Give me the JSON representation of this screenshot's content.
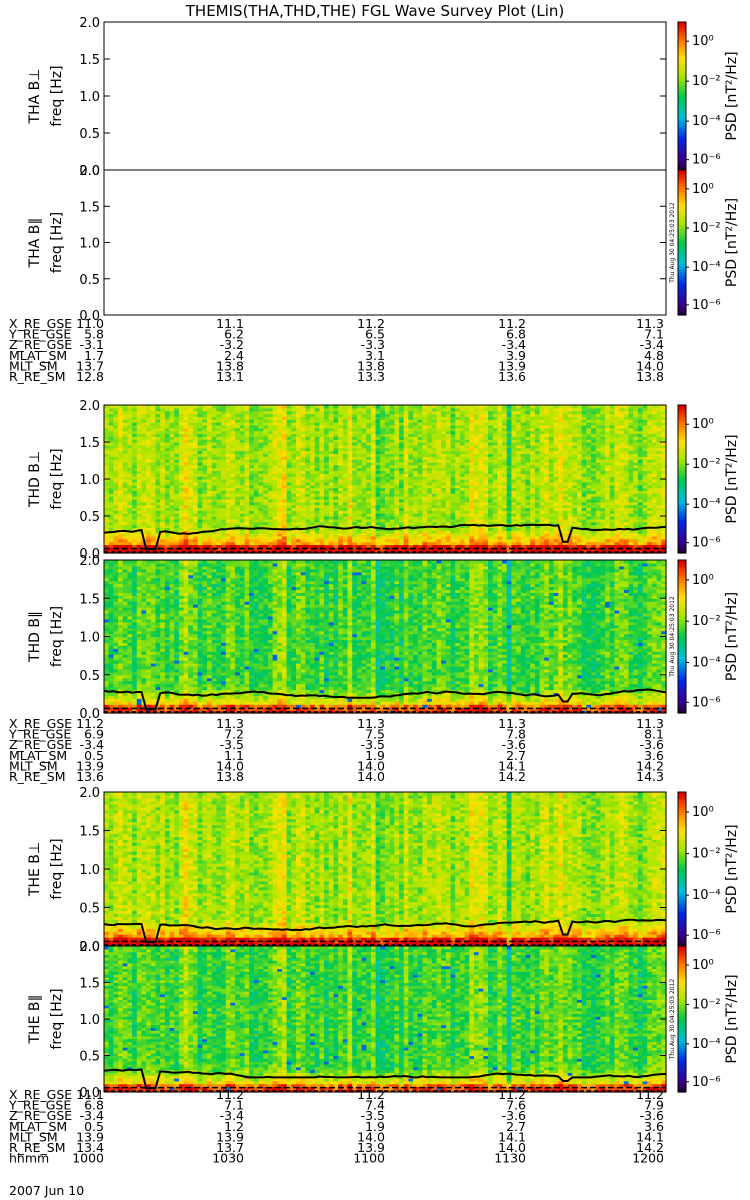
{
  "title": "THEMIS(THA,THD,THE) FGL Wave Survey Plot (Lin)",
  "colorbar": {
    "label": "PSD [nT²/Hz]",
    "tick_exponents": [
      0,
      -2,
      -4,
      -6
    ],
    "tick_labels": [
      "10⁰",
      "10⁻²",
      "10⁻⁴",
      "10⁻⁶"
    ]
  },
  "timestamp": "Thu Aug 30 04:25:03 2012",
  "date_label": "2007 Jun 10",
  "chart_data": [
    {
      "type": "heatmap",
      "probe": "tha",
      "panels": [
        {
          "label": "THA B⊥",
          "ylabel": "freq [Hz]",
          "ylim": [
            0,
            2.0
          ],
          "yticks": [
            "0.0",
            "0.5",
            "1.0",
            "1.5",
            "2.0"
          ],
          "has_data": false
        },
        {
          "label": "THA B∥",
          "ylabel": "freq [Hz]",
          "ylim": [
            0,
            2.0
          ],
          "yticks": [
            "0.0",
            "0.5",
            "1.0",
            "1.5",
            "2.0"
          ],
          "has_data": false
        }
      ],
      "ephemeris": [
        {
          "name": "X_RE_GSE",
          "values": [
            "11.0",
            "11.1",
            "11.2",
            "11.2",
            "11.3"
          ]
        },
        {
          "name": "Y_RE_GSE",
          "values": [
            "5.8",
            "6.2",
            "6.5",
            "6.8",
            "7.1"
          ]
        },
        {
          "name": "Z_RE_GSE",
          "values": [
            "-3.1",
            "-3.2",
            "-3.3",
            "-3.4",
            "-3.4"
          ]
        },
        {
          "name": "MLAT_SM",
          "values": [
            "1.7",
            "2.4",
            "3.1",
            "3.9",
            "4.8"
          ]
        },
        {
          "name": "MLT_SM",
          "values": [
            "13.7",
            "13.8",
            "13.8",
            "13.9",
            "14.0"
          ]
        },
        {
          "name": "R_RE_SM",
          "values": [
            "12.8",
            "13.1",
            "13.3",
            "13.6",
            "13.8"
          ]
        }
      ]
    },
    {
      "type": "heatmap",
      "probe": "thd",
      "panels": [
        {
          "label": "THD B⊥",
          "ylabel": "freq [Hz]",
          "ylim": [
            0,
            2.0
          ],
          "yticks": [
            "0.0",
            "0.5",
            "1.0",
            "1.5",
            "2.0"
          ],
          "has_data": true
        },
        {
          "label": "THD B∥",
          "ylabel": "freq [Hz]",
          "ylim": [
            0,
            2.0
          ],
          "yticks": [
            "0.0",
            "0.5",
            "1.0",
            "1.5",
            "2.0"
          ],
          "has_data": true
        }
      ],
      "ephemeris": [
        {
          "name": "X_RE_GSE",
          "values": [
            "11.2",
            "11.3",
            "11.3",
            "11.3",
            "11.3"
          ]
        },
        {
          "name": "Y_RE_GSE",
          "values": [
            "6.9",
            "7.2",
            "7.5",
            "7.8",
            "8.1"
          ]
        },
        {
          "name": "Z_RE_GSE",
          "values": [
            "-3.4",
            "-3.5",
            "-3.5",
            "-3.6",
            "-3.6"
          ]
        },
        {
          "name": "MLAT_SM",
          "values": [
            "0.5",
            "1.1",
            "1.9",
            "2.7",
            "3.6"
          ]
        },
        {
          "name": "MLT_SM",
          "values": [
            "13.9",
            "14.0",
            "14.0",
            "14.1",
            "14.2"
          ]
        },
        {
          "name": "R_RE_SM",
          "values": [
            "13.6",
            "13.8",
            "14.0",
            "14.2",
            "14.3"
          ]
        }
      ]
    },
    {
      "type": "heatmap",
      "probe": "the",
      "panels": [
        {
          "label": "THE B⊥",
          "ylabel": "freq [Hz]",
          "ylim": [
            0,
            2.0
          ],
          "yticks": [
            "0.0",
            "0.5",
            "1.0",
            "1.5",
            "2.0"
          ],
          "has_data": true
        },
        {
          "label": "THE B∥",
          "ylabel": "freq [Hz]",
          "ylim": [
            0,
            2.0
          ],
          "yticks": [
            "0.0",
            "0.5",
            "1.0",
            "1.5",
            "2.0"
          ],
          "has_data": true
        }
      ],
      "ephemeris": [
        {
          "name": "X_RE_GSE",
          "values": [
            "11.1",
            "11.2",
            "11.2",
            "11.2",
            "11.2"
          ]
        },
        {
          "name": "Y_RE_GSE",
          "values": [
            "6.8",
            "7.1",
            "7.4",
            "7.6",
            "7.9"
          ]
        },
        {
          "name": "Z_RE_GSE",
          "values": [
            "-3.4",
            "-3.4",
            "-3.5",
            "-3.6",
            "-3.6"
          ]
        },
        {
          "name": "MLAT_SM",
          "values": [
            "0.5",
            "1.2",
            "1.9",
            "2.7",
            "3.6"
          ]
        },
        {
          "name": "MLT_SM",
          "values": [
            "13.9",
            "13.9",
            "14.0",
            "14.1",
            "14.1"
          ]
        },
        {
          "name": "R_RE_SM",
          "values": [
            "13.4",
            "13.7",
            "13.9",
            "14.0",
            "14.2"
          ]
        },
        {
          "name": "hhmm",
          "values": [
            "1000",
            "1030",
            "1100",
            "1130",
            "1200"
          ]
        }
      ]
    }
  ]
}
